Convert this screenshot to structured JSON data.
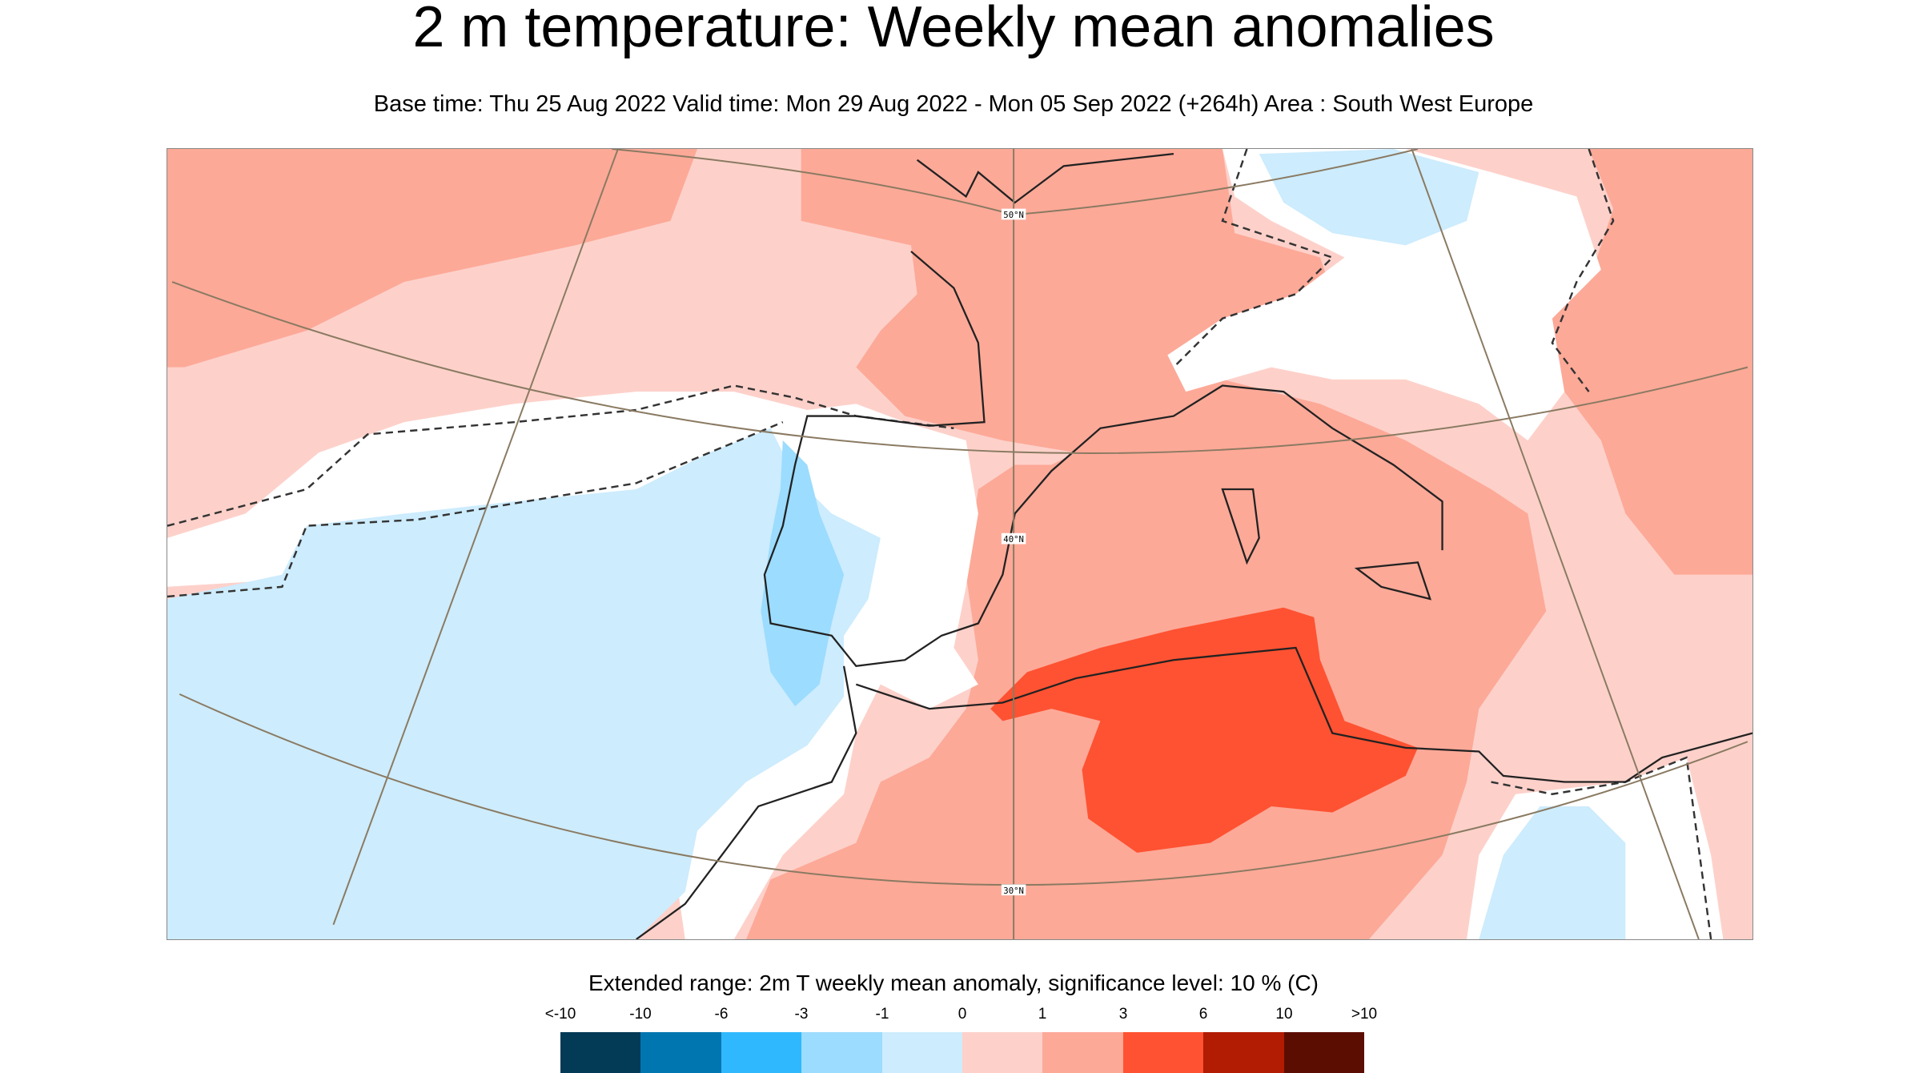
{
  "title": "2 m temperature: Weekly mean anomalies",
  "subtitle": "Base time: Thu 25 Aug 2022 Valid time: Mon 29 Aug 2022 - Mon 05 Sep 2022 (+264h) Area : South West Europe",
  "map": {
    "area": "South West Europe",
    "latitude_labels": [
      "50°N",
      "40°N",
      "30°N"
    ],
    "significance_contour": "dashed"
  },
  "legend": {
    "title": "Extended range: 2m T weekly mean anomaly, significance level: 10 % (C)",
    "ticks": [
      "<-10",
      "-10",
      "-6",
      "-3",
      "-1",
      "0",
      "1",
      "3",
      "6",
      "10",
      ">10"
    ],
    "colors": [
      "#033a56",
      "#0076b1",
      "#30b8fe",
      "#9cdcfe",
      "#cdecfd",
      "#fdd1ca",
      "#fda998",
      "#fe5232",
      "#b11c02",
      "#5c0d02"
    ]
  }
}
